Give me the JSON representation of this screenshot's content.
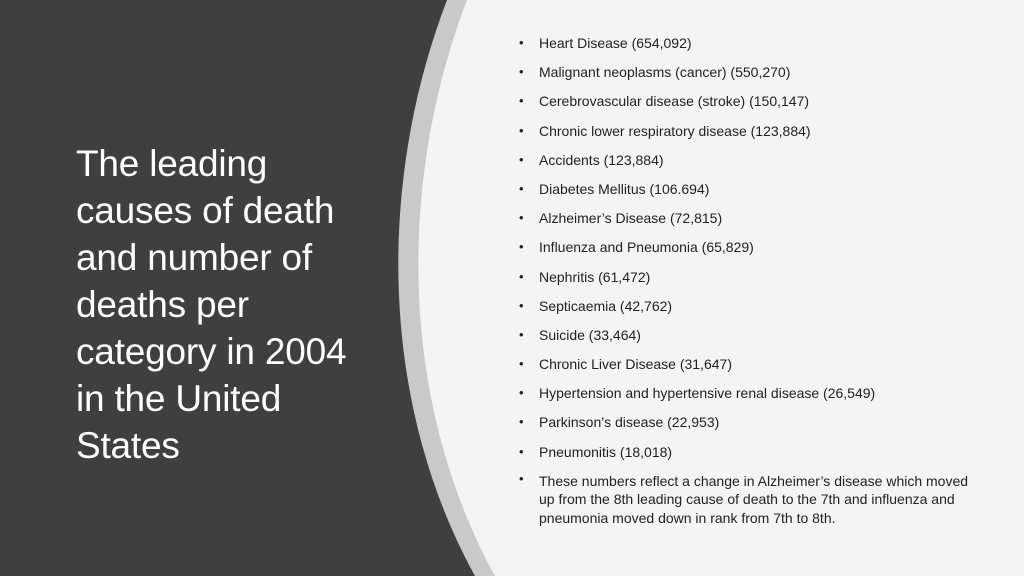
{
  "slide": {
    "title": "The leading causes of death and number of deaths per category in 2004 in the United States",
    "colors": {
      "dark_panel": "#3f3f3f",
      "accent_band": "#c9c9c9",
      "light_panel": "#f4f4f4",
      "title_text": "#ffffff",
      "body_text": "#222222"
    },
    "bullet_icon": "bullet-dot",
    "items": [
      "Heart Disease (654,092)",
      "Malignant neoplasms (cancer) (550,270)",
      "Cerebrovascular disease (stroke) (150,147)",
      "Chronic lower respiratory disease (123,884)",
      "Accidents (123,884)",
      "Diabetes Mellitus (106.694)",
      "Alzheimer’s Disease (72,815)",
      "Influenza and Pneumonia (65,829)",
      "Nephritis (61,472)",
      "Septicaemia (42,762)",
      "Suicide (33,464)",
      "Chronic Liver Disease (31,647)",
      "Hypertension and hypertensive renal disease (26,549)",
      "Parkinson’s disease (22,953)",
      "Pneumonitis (18,018)",
      "These numbers reflect a change in Alzheimer’s disease which moved up from the 8th leading cause of death to the 7th and influenza and pneumonia moved down in rank from 7th to 8th."
    ]
  }
}
